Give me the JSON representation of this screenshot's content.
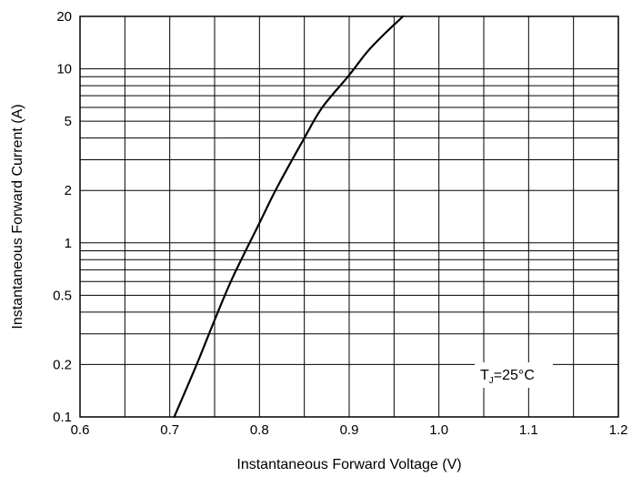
{
  "chart_data": {
    "type": "line",
    "title": "",
    "xlabel": "Instantaneous Forward Voltage (V)",
    "ylabel": "Instantaneous Forward Current (A)",
    "xlim": [
      0.6,
      1.2
    ],
    "ylim": [
      0.1,
      20
    ],
    "yscale": "log",
    "grid": true,
    "x_ticks": [
      0.6,
      0.7,
      0.8,
      0.9,
      1.0,
      1.1,
      1.2
    ],
    "x_tick_labels": [
      "0.6",
      "0.7",
      "0.8",
      "0.9",
      "1.0",
      "1.1",
      "1.2"
    ],
    "y_ticks": [
      0.1,
      0.2,
      0.5,
      1,
      2,
      5,
      10,
      20
    ],
    "y_tick_labels": [
      "0.1",
      "0.2",
      "0.5",
      "1",
      "2",
      "5",
      "10",
      "20"
    ],
    "x_gridlines": [
      0.6,
      0.65,
      0.7,
      0.75,
      0.8,
      0.85,
      0.9,
      0.95,
      1.0,
      1.05,
      1.1,
      1.15,
      1.2
    ],
    "y_gridlines": [
      0.1,
      0.2,
      0.3,
      0.4,
      0.5,
      0.6,
      0.7,
      0.8,
      0.9,
      1,
      2,
      3,
      4,
      5,
      6,
      7,
      8,
      9,
      10,
      20
    ],
    "series": [
      {
        "x": [
          0.705,
          0.73,
          0.75,
          0.77,
          0.8,
          0.82,
          0.85,
          0.87,
          0.9,
          0.92,
          0.94,
          0.96
        ],
        "y": [
          0.1,
          0.2,
          0.36,
          0.63,
          1.3,
          2.1,
          4.0,
          6.0,
          9.2,
          12.5,
          16.0,
          20.0
        ]
      }
    ],
    "annotation": {
      "text_main": "T",
      "text_sub": "J",
      "text_rest": "=25°C"
    }
  }
}
